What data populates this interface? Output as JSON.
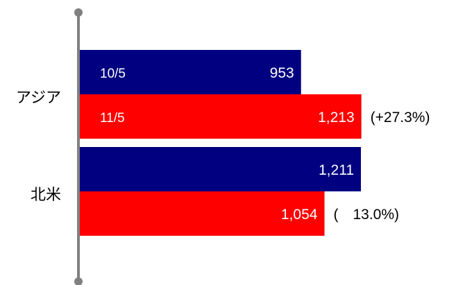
{
  "chart_data": {
    "type": "bar",
    "orientation": "horizontal",
    "categories": [
      "アジア",
      "北米"
    ],
    "series": [
      {
        "name": "10/5",
        "values": [
          953,
          1211
        ],
        "color": "#000080"
      },
      {
        "name": "11/5",
        "values": [
          1213,
          1054
        ],
        "color": "#ff0000"
      }
    ],
    "change_labels": [
      "(+27.3%)",
      "(　13.0%)"
    ],
    "xlim": [
      0,
      1211
    ],
    "legend": "inline-in-bars",
    "grid": false
  }
}
